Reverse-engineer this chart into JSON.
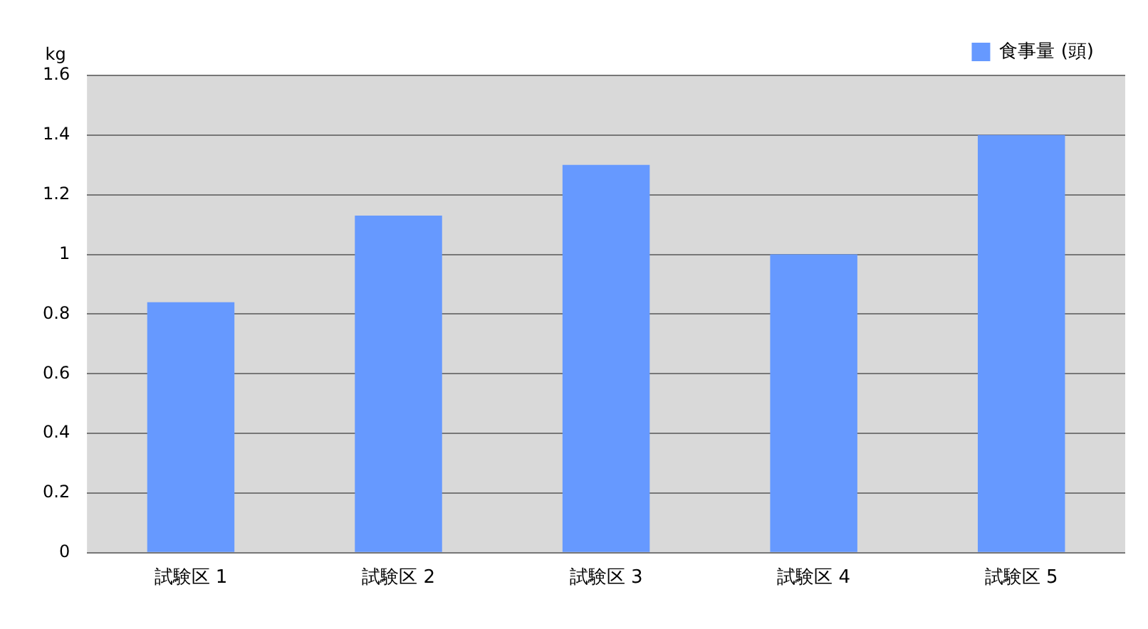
{
  "chart_data": {
    "type": "bar",
    "ylabel": "kg",
    "categories": [
      "試験区 1",
      "試験区 2",
      "試験区 3",
      "試験区 4",
      "試験区 5"
    ],
    "series": [
      {
        "name": "食事量 (頭)",
        "color": "#6699ff",
        "values": [
          0.84,
          1.13,
          1.3,
          1.0,
          1.4
        ]
      }
    ],
    "ylim": [
      0,
      1.6
    ],
    "yticks": [
      0,
      0.2,
      0.4,
      0.6,
      0.8,
      1,
      1.2,
      1.4,
      1.6
    ],
    "grid": "y",
    "legend": "top right"
  }
}
